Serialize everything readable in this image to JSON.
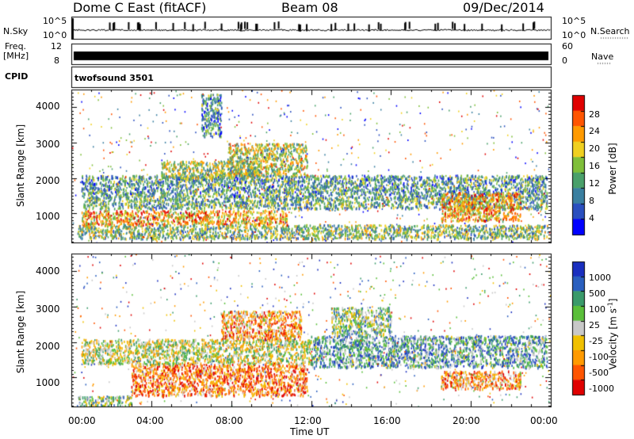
{
  "header": {
    "title": "Dome C East (fitACF)",
    "beam": "Beam 08",
    "date": "09/Dec/2014"
  },
  "top_panels": {
    "nsky_label": "N.Sky",
    "nsky_ticks": [
      "10^5",
      "10^0"
    ],
    "nsearch_label": "N.Search",
    "freq_label": "Freq.",
    "freq_unit": "[MHz]",
    "freq_ticks": [
      "12",
      "8"
    ],
    "nave_label": "Nave",
    "nave_ticks": [
      "60",
      "0"
    ],
    "cpid_label": "CPID",
    "cpid_value": "twofsound 3501"
  },
  "chart_data": [
    {
      "type": "heatmap",
      "panel": "power",
      "ylabel": "Slant Range [km]",
      "xlabel": "",
      "x_ticks": [
        "00:00",
        "04:00",
        "08:00",
        "12:00",
        "16:00",
        "20:00",
        "00:00"
      ],
      "x_range_hours": [
        0,
        24
      ],
      "y_ticks": [
        1000,
        2000,
        3000,
        4000
      ],
      "ylim": [
        180,
        4500
      ],
      "colorbar": {
        "label": "Power [dB]",
        "ticks": [
          "28",
          "24",
          "20",
          "16",
          "12",
          "8",
          "4"
        ],
        "range": [
          0,
          30
        ],
        "colors": [
          "#0000ff",
          "#2a4fbf",
          "#3a7fa0",
          "#4aa06a",
          "#7fbf3a",
          "#f0d020",
          "#ff9a00",
          "#ff5500",
          "#e00000"
        ]
      },
      "bands": [
        {
          "x": [
            0.3,
            23.9
          ],
          "y": [
            300,
            700
          ],
          "level": 0.45
        },
        {
          "x": [
            0.5,
            10.8
          ],
          "y": [
            700,
            1100
          ],
          "level": 0.7
        },
        {
          "x": [
            0.6,
            23.8
          ],
          "y": [
            1150,
            1500
          ],
          "level": 0.4
        },
        {
          "x": [
            0.5,
            23.8
          ],
          "y": [
            1500,
            2100
          ],
          "level": 0.35
        },
        {
          "x": [
            7.8,
            11.8
          ],
          "y": [
            2100,
            3000
          ],
          "level": 0.55
        },
        {
          "x": [
            4.5,
            9.5
          ],
          "y": [
            2000,
            2500
          ],
          "level": 0.5
        },
        {
          "x": [
            18.5,
            22.5
          ],
          "y": [
            800,
            1600
          ],
          "level": 0.7
        },
        {
          "x": [
            6.5,
            7.5
          ],
          "y": [
            3200,
            4400
          ],
          "level": 0.3
        }
      ]
    },
    {
      "type": "heatmap",
      "panel": "velocity",
      "ylabel": "Slant Range [km]",
      "xlabel": "Time UT",
      "x_ticks": [
        "00:00",
        "04:00",
        "08:00",
        "12:00",
        "16:00",
        "20:00",
        "00:00"
      ],
      "x_range_hours": [
        0,
        24
      ],
      "y_ticks": [
        1000,
        2000,
        3000,
        4000
      ],
      "ylim": [
        180,
        4500
      ],
      "colorbar": {
        "label": "Velocity [m s^-1]",
        "ticks": [
          "1000",
          "500",
          "100",
          "25",
          "-25",
          "-100",
          "-500",
          "-1000"
        ],
        "range": [
          -1100,
          1100
        ],
        "colors": [
          "#e00000",
          "#ff5500",
          "#ff9a00",
          "#f0c000",
          "#c8c8c8",
          "#5abf3a",
          "#3a9a6a",
          "#2a5fbf",
          "#1a2fbf"
        ]
      },
      "bands": [
        {
          "x": [
            0.3,
            3.0
          ],
          "y": [
            200,
            500
          ],
          "level": 0.6
        },
        {
          "x": [
            3.0,
            11.8
          ],
          "y": [
            500,
            1400
          ],
          "level": 0.25
        },
        {
          "x": [
            0.5,
            12.0
          ],
          "y": [
            1400,
            2100
          ],
          "level": 0.5
        },
        {
          "x": [
            7.5,
            11.5
          ],
          "y": [
            2100,
            2900
          ],
          "level": 0.3
        },
        {
          "x": [
            12.0,
            23.8
          ],
          "y": [
            1300,
            2200
          ],
          "level": 0.7
        },
        {
          "x": [
            18.5,
            22.5
          ],
          "y": [
            700,
            1200
          ],
          "level": 0.3
        },
        {
          "x": [
            13.0,
            16.0
          ],
          "y": [
            2200,
            3000
          ],
          "level": 0.6
        }
      ]
    }
  ]
}
